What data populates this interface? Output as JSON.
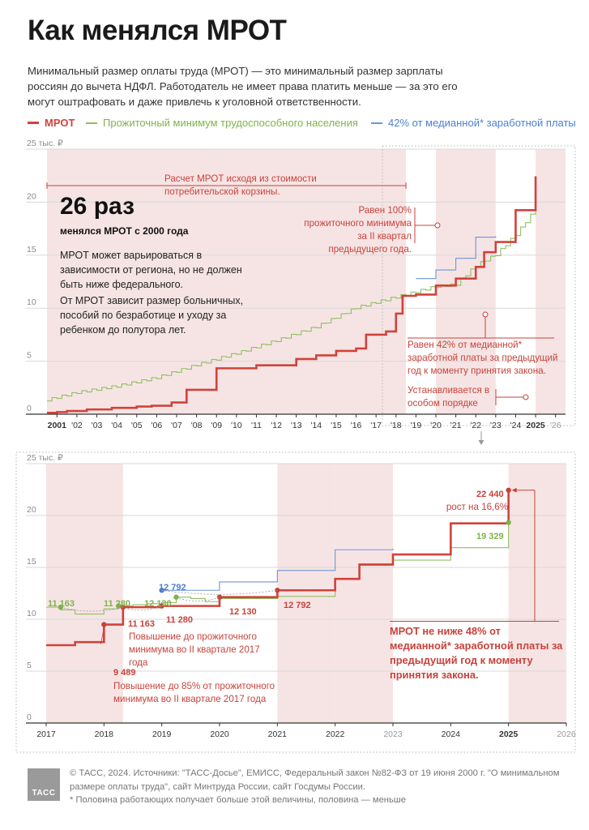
{
  "title": "Как менялся МРОТ",
  "intro": "Минимальный размер оплаты труда (МРОТ) — это минимальный размер зарплаты россиян до вычета НДФЛ. Работодатель не имеет права платить меньше — за это его могут оштрафовать и даже привлечь к уголовной ответственности.",
  "legend": {
    "mrot": "МРОТ",
    "subsistence": "Прожиточный минимум трудоспособного населения",
    "median": "42% от медианной* заработной платы"
  },
  "colors": {
    "mrot": "#d1423a",
    "subsistence": "#8fbf62",
    "median": "#6d95d8",
    "shade": "#f6e4e4",
    "grid": "#d8d8d8"
  },
  "big_number": "26 раз",
  "big_number_caption": "менялся МРОТ с 2000 года",
  "note1": "МРОТ может варьироваться в зависимости от региона, но не должен быть ниже федерального.",
  "note2": "От МРОТ зависит размер больничных, пособий по безработице и уходу за ребенком до полутора лет.",
  "annotations": {
    "basket": "Расчет МРОТ исходя из стоимости потребительской корзины.",
    "subsistence100": "Равен 100% прожиточного минимума за II квартал предыдущего года.",
    "median42": "Равен 42% от медианной* заработной платы за предыдущий год к моменту принятия закона.",
    "special": "Устанавливается в особом порядке",
    "raise_full": "Повышение до прожиточного минимума во II квартале 2017 года",
    "raise_85": "Повышение до 85% от прожиточного минимума во II квартале 2017 года",
    "rule48": "МРОТ не ниже 48% от медианной* заработной платы за предыдущий год к моменту принятия закона.",
    "growth": "рост на 16,6%"
  },
  "point_labels": {
    "m9489": "9 489",
    "m11163": "11 163",
    "m11280": "11 280",
    "m12130": "12 130",
    "m12792": "12 792",
    "m22440": "22 440",
    "p11163": "11 163",
    "p11280": "11 280",
    "p12130": "12 130",
    "p19329": "19 329",
    "d12792": "12 792"
  },
  "footer": {
    "source": "© ТАСС, 2024. Источники: \"ТАСС-Досье\", ЕМИСС, Федеральный закон №82-ФЗ от 19 июня 2000 г. \"О минимальном размере оплаты труда\", сайт Минтруда России, сайт Госдумы России.",
    "footnote": "* Половина работающих получает больше этой величины, половина — меньше",
    "logo": "ТАСС"
  },
  "chart_data": [
    {
      "type": "line",
      "title": "",
      "ylabel": "тыс. ₽",
      "xlim": [
        2000.5,
        2026.5
      ],
      "ylim": [
        0,
        25
      ],
      "y_ticks": [
        "0",
        "5",
        "10",
        "15",
        "20",
        "25 тыс. ₽"
      ],
      "x_ticks": [
        "2001",
        "'02",
        "'03",
        "'04",
        "'05",
        "'06",
        "'07",
        "'08",
        "'09",
        "'10",
        "'11",
        "'12",
        "'13",
        "'14",
        "'15",
        "'16",
        "'17",
        "'18",
        "'19",
        "'20",
        "'21",
        "'22",
        "'23",
        "'24",
        "2025",
        "'26"
      ],
      "grid": true,
      "series": [
        {
          "name": "МРОТ",
          "step": true,
          "x": [
            2000.5,
            2001.0,
            2001.5,
            2002.5,
            2003.75,
            2005.0,
            2005.75,
            2006.75,
            2007.5,
            2009.0,
            2011.0,
            2012.0,
            2013.0,
            2014.0,
            2015.0,
            2016.0,
            2016.5,
            2017.5,
            2018.0,
            2018.33,
            2019.0,
            2020.0,
            2021.0,
            2022.0,
            2022.42,
            2023.0,
            2024.0,
            2025.0
          ],
          "y": [
            0.132,
            0.2,
            0.3,
            0.45,
            0.6,
            0.72,
            0.8,
            1.1,
            2.3,
            4.33,
            4.61,
            4.61,
            5.2,
            5.55,
            5.97,
            6.2,
            7.5,
            7.8,
            9.489,
            11.163,
            11.28,
            12.13,
            12.792,
            13.89,
            15.28,
            16.242,
            19.242,
            22.44
          ]
        },
        {
          "name": "Прожиточный минимум трудоспособного населения",
          "approximate": true,
          "x": [
            2000.5,
            2002.0,
            2004.0,
            2006.0,
            2008.0,
            2010.0,
            2012.0,
            2014.0,
            2016.0,
            2017.0,
            2018.0,
            2019.0,
            2020.0,
            2021.0,
            2022.0,
            2023.0,
            2024.0,
            2025.0
          ],
          "y": [
            1.3,
            2.0,
            2.6,
            3.4,
            4.6,
            5.7,
            6.9,
            8.2,
            10.0,
            10.5,
            11.0,
            11.5,
            12.0,
            12.2,
            14.0,
            15.0,
            16.9,
            19.329
          ]
        },
        {
          "name": "42% от медианной* заработной платы",
          "step": true,
          "x": [
            2019.0,
            2020.0,
            2021.0,
            2022.0,
            2023.0
          ],
          "y": [
            12.792,
            13.6,
            14.7,
            16.7,
            16.8
          ]
        }
      ]
    },
    {
      "type": "line",
      "title": "",
      "ylabel": "тыс. ₽",
      "xlim": [
        2017,
        2026
      ],
      "ylim": [
        0,
        25
      ],
      "y_ticks": [
        "0",
        "5",
        "10",
        "15",
        "20",
        "25 тыс. ₽"
      ],
      "x_ticks": [
        "2017",
        "2018",
        "2019",
        "2020",
        "2021",
        "2022",
        "2023",
        "2024",
        "2025",
        "2026"
      ],
      "grid": true,
      "series": [
        {
          "name": "МРОТ",
          "step": true,
          "x": [
            2017.0,
            2017.5,
            2018.0,
            2018.33,
            2019.0,
            2020.0,
            2021.0,
            2022.0,
            2022.42,
            2023.0,
            2024.0,
            2025.0
          ],
          "y": [
            7.5,
            7.8,
            9.489,
            11.163,
            11.28,
            12.13,
            12.792,
            13.89,
            15.28,
            16.242,
            19.242,
            22.44
          ]
        },
        {
          "name": "Прожиточный минимум трудоспособного населения",
          "step": true,
          "approximate": true,
          "x": [
            2017.0,
            2017.25,
            2017.5,
            2017.75,
            2018.0,
            2018.25,
            2018.5,
            2018.75,
            2019.0,
            2019.25,
            2019.5,
            2019.75,
            2020.0,
            2021.0,
            2022.0,
            2022.42,
            2023.0,
            2024.0,
            2025.0
          ],
          "y": [
            11.163,
            10.9,
            10.5,
            10.5,
            11.0,
            11.28,
            11.4,
            11.5,
            11.6,
            12.13,
            12.0,
            11.7,
            12.0,
            12.2,
            13.9,
            15.2,
            15.7,
            16.9,
            19.329
          ]
        },
        {
          "name": "42% от медианной* заработной платы",
          "step": true,
          "x": [
            2019.0,
            2020.0,
            2021.0,
            2022.0,
            2023.0
          ],
          "y": [
            12.792,
            13.6,
            14.7,
            16.7,
            16.8
          ]
        }
      ]
    }
  ]
}
